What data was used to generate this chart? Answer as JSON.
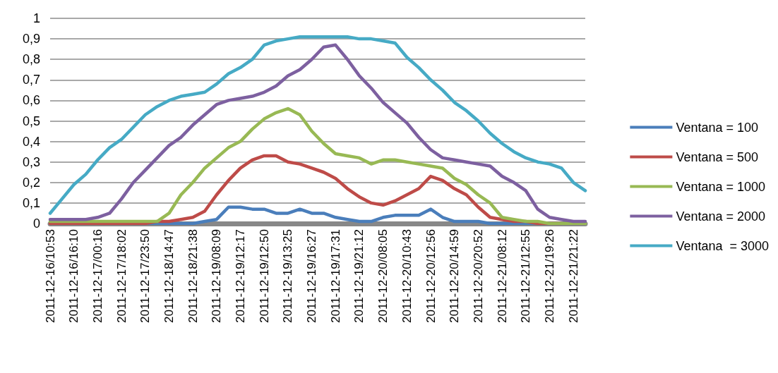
{
  "chart_data": {
    "type": "line",
    "categories": [
      "2011-12-16/10:53",
      null,
      "2011-12-16/16:10",
      null,
      "2011-12-17/00:16",
      null,
      "2011-12-17/18:02",
      null,
      "2011-12-17/23:50",
      null,
      "2011-12-18/14:47",
      null,
      "2011-12-18/21:38",
      null,
      "2011-12-19/08:09",
      null,
      "2011-12-19/12:17",
      null,
      "2011-12-19/12:50",
      null,
      "2011-12-19/13:25",
      null,
      "2011-12-19/16:27",
      null,
      "2011-12-19/17:31",
      null,
      "2011-12-19/21:12",
      null,
      "2011-12-20/08:05",
      null,
      "2011-12-20/10:43",
      null,
      "2011-12-20/12:56",
      null,
      "2011-12-20/14:59",
      null,
      "2011-12-20/20:52",
      null,
      "2011-12-21/08:12",
      null,
      "2011-12-21/12:55",
      null,
      "2011-12-21/19:26",
      null,
      "2011-12-21/21:22",
      null
    ],
    "series": [
      {
        "name": "Ventana = 100",
        "color": "#4a7ebb",
        "values": [
          null,
          null,
          null,
          null,
          null,
          null,
          null,
          0,
          0,
          0,
          0,
          0,
          0,
          0.01,
          0.02,
          0.08,
          0.08,
          0.07,
          0.07,
          0.05,
          0.05,
          0.07,
          0.05,
          0.05,
          0.03,
          0.02,
          0.01,
          0.01,
          0.03,
          0.04,
          0.04,
          0.04,
          0.07,
          0.03,
          0.01,
          0.01,
          0.01,
          0,
          0,
          0,
          0,
          0,
          0,
          null,
          null,
          null
        ]
      },
      {
        "name": "Ventana = 500",
        "color": "#be4b48",
        "values": [
          0,
          0,
          0,
          0,
          0,
          0,
          0,
          0,
          0,
          0.01,
          0.01,
          0.02,
          0.03,
          0.06,
          0.14,
          0.21,
          0.27,
          0.31,
          0.33,
          0.33,
          0.3,
          0.29,
          0.27,
          0.25,
          0.22,
          0.17,
          0.13,
          0.1,
          0.09,
          0.11,
          0.14,
          0.17,
          0.23,
          0.21,
          0.17,
          0.14,
          0.08,
          0.03,
          0.02,
          0.01,
          0.01,
          0,
          0,
          0,
          null,
          null
        ]
      },
      {
        "name": "Ventana = 1000",
        "color": "#98b954",
        "values": [
          0.01,
          0.01,
          0.01,
          0.01,
          0.01,
          0.01,
          0.01,
          0.01,
          0.01,
          0.01,
          0.05,
          0.14,
          0.2,
          0.27,
          0.32,
          0.37,
          0.4,
          0.46,
          0.51,
          0.54,
          0.56,
          0.53,
          0.45,
          0.39,
          0.34,
          0.33,
          0.32,
          0.29,
          0.31,
          0.31,
          0.3,
          0.29,
          0.28,
          0.27,
          0.22,
          0.19,
          0.14,
          0.1,
          0.03,
          0.02,
          0.01,
          0.01,
          0,
          0,
          0,
          0
        ]
      },
      {
        "name": "Ventana = 2000",
        "color": "#7d60a0",
        "values": [
          0.02,
          0.02,
          0.02,
          0.02,
          0.03,
          0.05,
          0.12,
          0.2,
          0.26,
          0.32,
          0.38,
          0.42,
          0.48,
          0.53,
          0.58,
          0.6,
          0.61,
          0.62,
          0.64,
          0.67,
          0.72,
          0.75,
          0.8,
          0.86,
          0.87,
          0.8,
          0.72,
          0.66,
          0.59,
          0.54,
          0.49,
          0.42,
          0.36,
          0.32,
          0.31,
          0.3,
          0.29,
          0.28,
          0.23,
          0.2,
          0.16,
          0.07,
          0.03,
          0.02,
          0.01,
          0.01
        ]
      },
      {
        "name": "Ventana  = 3000",
        "color": "#46aac5",
        "values": [
          0.05,
          0.12,
          0.19,
          0.24,
          0.31,
          0.37,
          0.41,
          0.47,
          0.53,
          0.57,
          0.6,
          0.62,
          0.63,
          0.64,
          0.68,
          0.73,
          0.76,
          0.8,
          0.87,
          0.89,
          0.9,
          0.91,
          0.91,
          0.91,
          0.91,
          0.91,
          0.9,
          0.9,
          0.89,
          0.88,
          0.81,
          0.76,
          0.7,
          0.65,
          0.59,
          0.55,
          0.5,
          0.44,
          0.39,
          0.35,
          0.32,
          0.3,
          0.29,
          0.27,
          0.2,
          0.16
        ]
      }
    ],
    "ylim": [
      0,
      1
    ],
    "yticks": [
      0,
      {
        "value": 0.1,
        "label": "0,1"
      },
      {
        "value": 0.2,
        "label": "0,2"
      },
      {
        "value": 0.3,
        "label": "0,3"
      },
      {
        "value": 0.4,
        "label": "0,4"
      },
      {
        "value": 0.5,
        "label": "0,5"
      },
      {
        "value": 0.6,
        "label": "0,6"
      },
      {
        "value": 0.7,
        "label": "0,7"
      },
      {
        "value": 0.8,
        "label": "0,8"
      },
      {
        "value": 0.9,
        "label": "0,9"
      },
      1
    ],
    "grid": "y",
    "legend": "right",
    "marker": "none",
    "line_style": "solid"
  }
}
